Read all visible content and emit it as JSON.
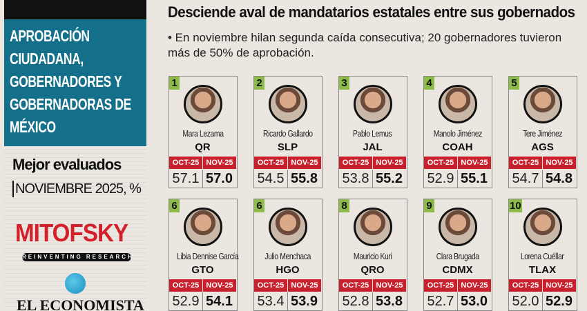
{
  "sidebar": {
    "title": "APROBACIÓN CIUDADANA, GOBERNADORES Y GOBERNADORAS DE MÉXICO",
    "subtitle": "Mejor evaluados",
    "period": "NOVIEMBRE 2025, %",
    "source_logo": "MITOFSKY",
    "source_tagline": "REINVENTING RESEARCH",
    "publisher": "EL ECONOMISTA"
  },
  "header": {
    "title": "Desciende aval de mandatarios estatales entre sus gobernados",
    "description": "• En noviembre hilan segunda caída consecutiva; 20 gobernadores tuvieron más de 50% de aprobación."
  },
  "columns": {
    "prev": "OCT-25",
    "curr": "NOV-25"
  },
  "colors": {
    "accent_teal": "#14708a",
    "header_red": "#c8202c",
    "rank_green": "#8dbb4a",
    "logo_red": "#d3202a"
  },
  "governors": [
    {
      "rank": "1",
      "name": "Mara Lezama",
      "state": "QR",
      "oct": "57.1",
      "nov": "57.0"
    },
    {
      "rank": "2",
      "name": "Ricardo Gallardo",
      "state": "SLP",
      "oct": "54.5",
      "nov": "55.8"
    },
    {
      "rank": "3",
      "name": "Pablo Lemus",
      "state": "JAL",
      "oct": "53.8",
      "nov": "55.2"
    },
    {
      "rank": "4",
      "name": "Manolo Jiménez",
      "state": "COAH",
      "oct": "52.9",
      "nov": "55.1"
    },
    {
      "rank": "5",
      "name": "Tere Jiménez",
      "state": "AGS",
      "oct": "54.7",
      "nov": "54.8"
    },
    {
      "rank": "6",
      "name": "Libia Dennise García",
      "state": "GTO",
      "oct": "52.9",
      "nov": "54.1"
    },
    {
      "rank": "6",
      "name": "Julio Menchaca",
      "state": "HGO",
      "oct": "53.4",
      "nov": "53.9"
    },
    {
      "rank": "8",
      "name": "Mauricio Kuri",
      "state": "QRO",
      "oct": "52.8",
      "nov": "53.8"
    },
    {
      "rank": "9",
      "name": "Clara Brugada",
      "state": "CDMX",
      "oct": "52.7",
      "nov": "53.0"
    },
    {
      "rank": "10",
      "name": "Lorena Cuéllar",
      "state": "TLAX",
      "oct": "52.0",
      "nov": "52.9"
    }
  ]
}
